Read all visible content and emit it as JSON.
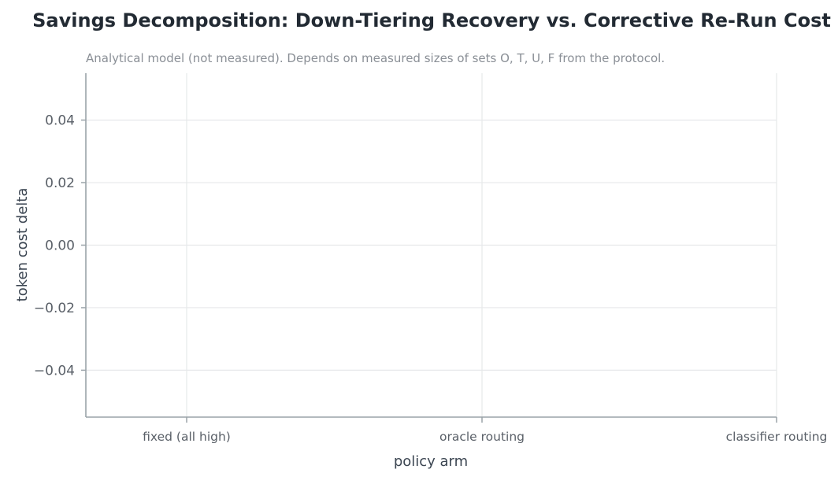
{
  "chart_data": {
    "type": "bar",
    "title": "Savings Decomposition: Down-Tiering Recovery vs. Corrective Re-Run Cost",
    "subtitle": "Analytical model (not measured). Depends on measured sizes of sets O, T, U, F from the protocol.",
    "xlabel": "policy arm",
    "ylabel": "token cost delta",
    "categories": [
      "fixed (all high)",
      "oracle routing",
      "classifier routing"
    ],
    "series": [],
    "ylim": [
      -0.055,
      0.055
    ],
    "yticks": [
      -0.04,
      -0.02,
      0.0,
      0.02,
      0.04
    ],
    "ytick_labels": [
      "−0.04",
      "−0.02",
      "0.00",
      "0.02",
      "0.04"
    ],
    "grid": true,
    "colors": {
      "grid": "#e6e8ea",
      "axis": "#9aa3a8",
      "text": "#5a6068"
    }
  }
}
